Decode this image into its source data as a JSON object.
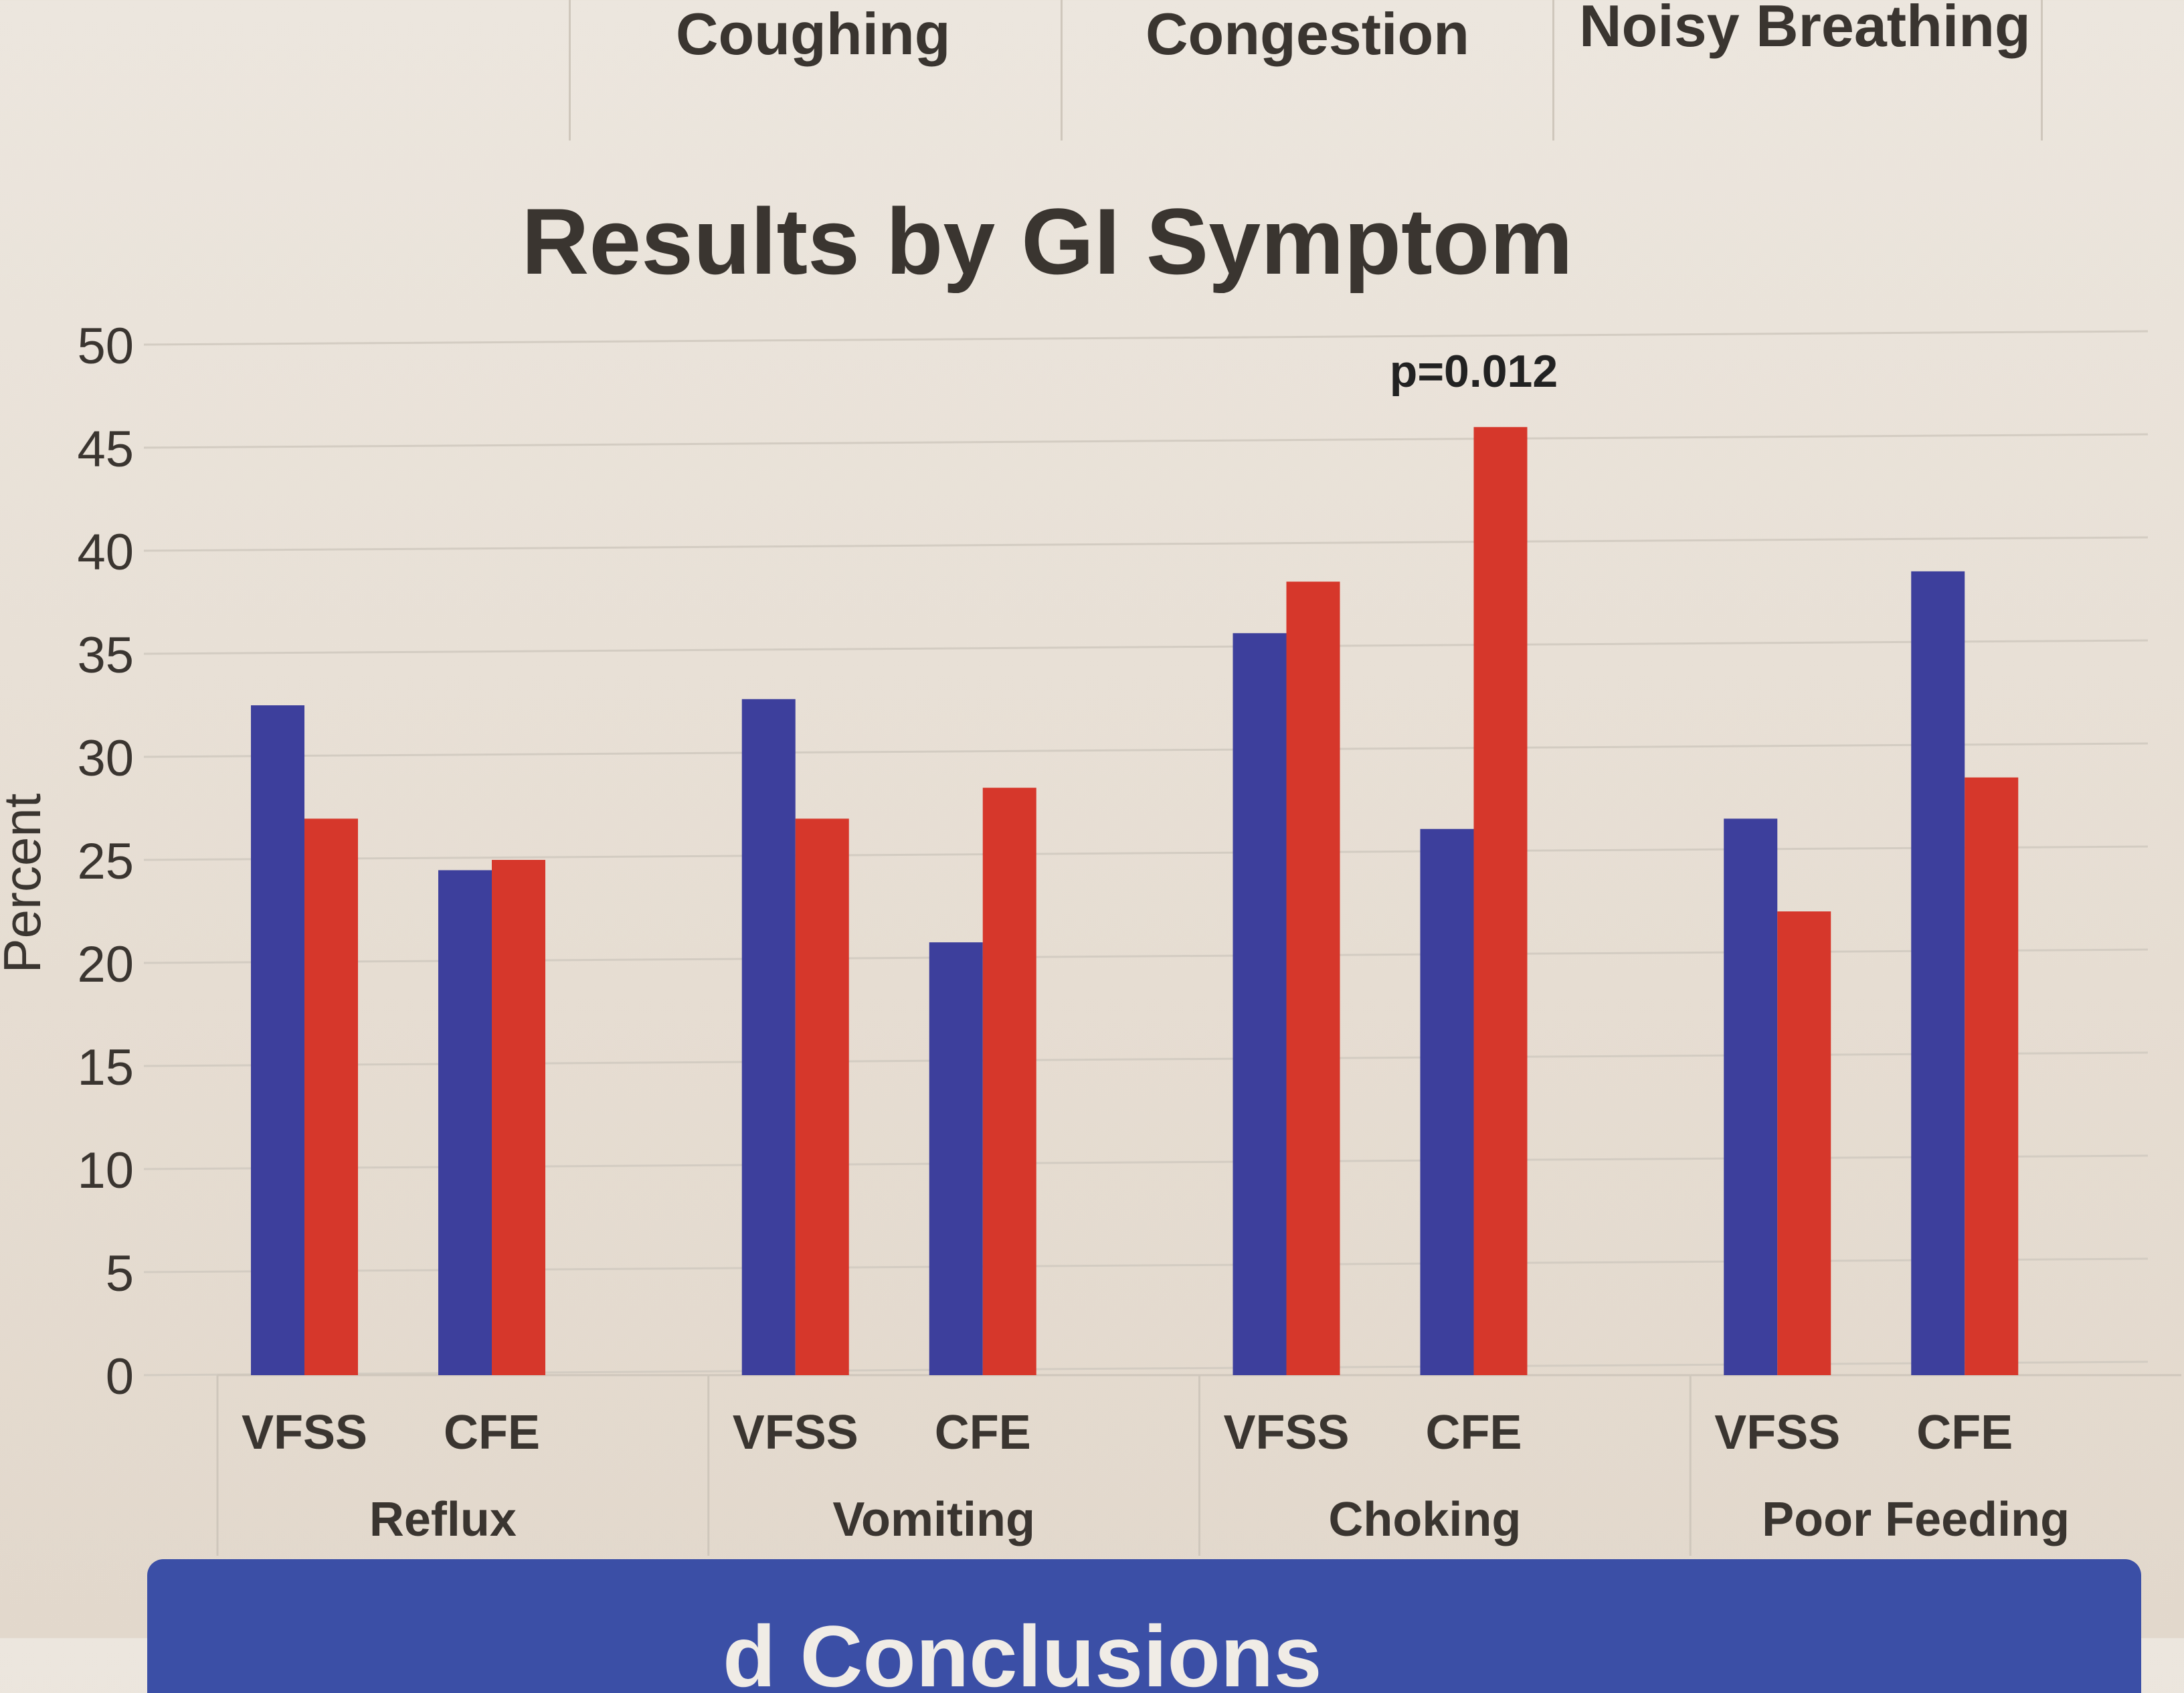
{
  "header": {
    "columns": [
      "Coughing",
      "Congestion",
      "Noisy Breathing"
    ]
  },
  "banner": {
    "text": "d Conclusions"
  },
  "chart_data": {
    "type": "bar",
    "title": "Results by GI Symptom",
    "ylabel": "Percent",
    "xlabel": "",
    "ylim": [
      0,
      50
    ],
    "yticks": [
      0,
      5,
      10,
      15,
      20,
      25,
      30,
      35,
      40,
      45,
      50
    ],
    "grid": true,
    "groups": [
      "Reflux",
      "Vomiting",
      "Choking",
      "Poor Feeding"
    ],
    "subcategories": [
      "VFSS",
      "CFE"
    ],
    "series": [
      {
        "color": "#3d3f9c",
        "values": [
          [
            32.5,
            24.5
          ],
          [
            32.8,
            21
          ],
          [
            36,
            26.5
          ],
          [
            27,
            39
          ]
        ]
      },
      {
        "color": "#d6372b",
        "values": [
          [
            27,
            25
          ],
          [
            27,
            28.5
          ],
          [
            38.5,
            46
          ],
          [
            22.5,
            29
          ]
        ]
      }
    ],
    "annotations": [
      {
        "group": "Choking",
        "subcategory": "CFE",
        "text": "p=0.012"
      }
    ]
  }
}
